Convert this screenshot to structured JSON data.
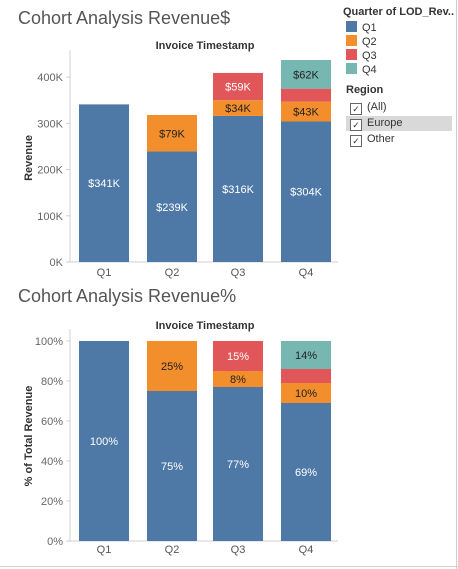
{
  "legend": {
    "title": "Quarter of LOD_Rev..",
    "items": [
      {
        "label": "Q1",
        "color": "#4e79a7"
      },
      {
        "label": "Q2",
        "color": "#f28e2b"
      },
      {
        "label": "Q3",
        "color": "#e15759"
      },
      {
        "label": "Q4",
        "color": "#76b7b2"
      }
    ]
  },
  "region_filter": {
    "title": "Region",
    "items": [
      {
        "label": "(All)",
        "checked": true,
        "selected": false
      },
      {
        "label": "Europe",
        "checked": true,
        "selected": true
      },
      {
        "label": "Other",
        "checked": true,
        "selected": false
      }
    ]
  },
  "chart_data": [
    {
      "type": "bar",
      "stacked": true,
      "title": "Cohort Analysis Revenue$",
      "subtitle": "Invoice Timestamp",
      "xlabel": "",
      "ylabel": "Revenue",
      "categories": [
        "Q1",
        "Q2",
        "Q3",
        "Q4"
      ],
      "ylim": [
        0,
        450000
      ],
      "yticks": [
        0,
        100000,
        200000,
        300000,
        400000
      ],
      "ytick_labels": [
        "0K",
        "100K",
        "200K",
        "300K",
        "400K"
      ],
      "grid": false,
      "legend_position": "top-right",
      "series": [
        {
          "name": "Q1",
          "color": "#4e79a7",
          "values": [
            341000,
            239000,
            316000,
            304000
          ],
          "labels": [
            "$341K",
            "$239K",
            "$316K",
            "$304K"
          ]
        },
        {
          "name": "Q2",
          "color": "#f28e2b",
          "values": [
            0,
            79000,
            34000,
            43000
          ],
          "labels": [
            "",
            "$79K",
            "$34K",
            "$43K"
          ]
        },
        {
          "name": "Q3",
          "color": "#e15759",
          "values": [
            0,
            0,
            59000,
            28000
          ],
          "labels": [
            "",
            "",
            "$59K",
            ""
          ]
        },
        {
          "name": "Q4",
          "color": "#76b7b2",
          "values": [
            0,
            0,
            0,
            62000
          ],
          "labels": [
            "",
            "",
            "",
            "$62K"
          ]
        }
      ]
    },
    {
      "type": "bar",
      "stacked": true,
      "title": "Cohort Analysis Revenue%",
      "subtitle": "Invoice Timestamp",
      "xlabel": "",
      "ylabel": "% of Total Revenue",
      "categories": [
        "Q1",
        "Q2",
        "Q3",
        "Q4"
      ],
      "ylim": [
        0,
        100
      ],
      "yticks": [
        0,
        20,
        40,
        60,
        80,
        100
      ],
      "ytick_labels": [
        "0%",
        "20%",
        "40%",
        "60%",
        "80%",
        "100%"
      ],
      "grid": false,
      "legend_position": "top-right",
      "series": [
        {
          "name": "Q1",
          "color": "#4e79a7",
          "values": [
            100,
            75,
            77,
            69
          ],
          "labels": [
            "100%",
            "75%",
            "77%",
            "69%"
          ]
        },
        {
          "name": "Q2",
          "color": "#f28e2b",
          "values": [
            0,
            25,
            8,
            10
          ],
          "labels": [
            "",
            "25%",
            "8%",
            "10%"
          ]
        },
        {
          "name": "Q3",
          "color": "#e15759",
          "values": [
            0,
            0,
            15,
            7
          ],
          "labels": [
            "",
            "",
            "15%",
            ""
          ]
        },
        {
          "name": "Q4",
          "color": "#76b7b2",
          "values": [
            0,
            0,
            0,
            14
          ],
          "labels": [
            "",
            "",
            "",
            "14%"
          ]
        }
      ]
    }
  ]
}
